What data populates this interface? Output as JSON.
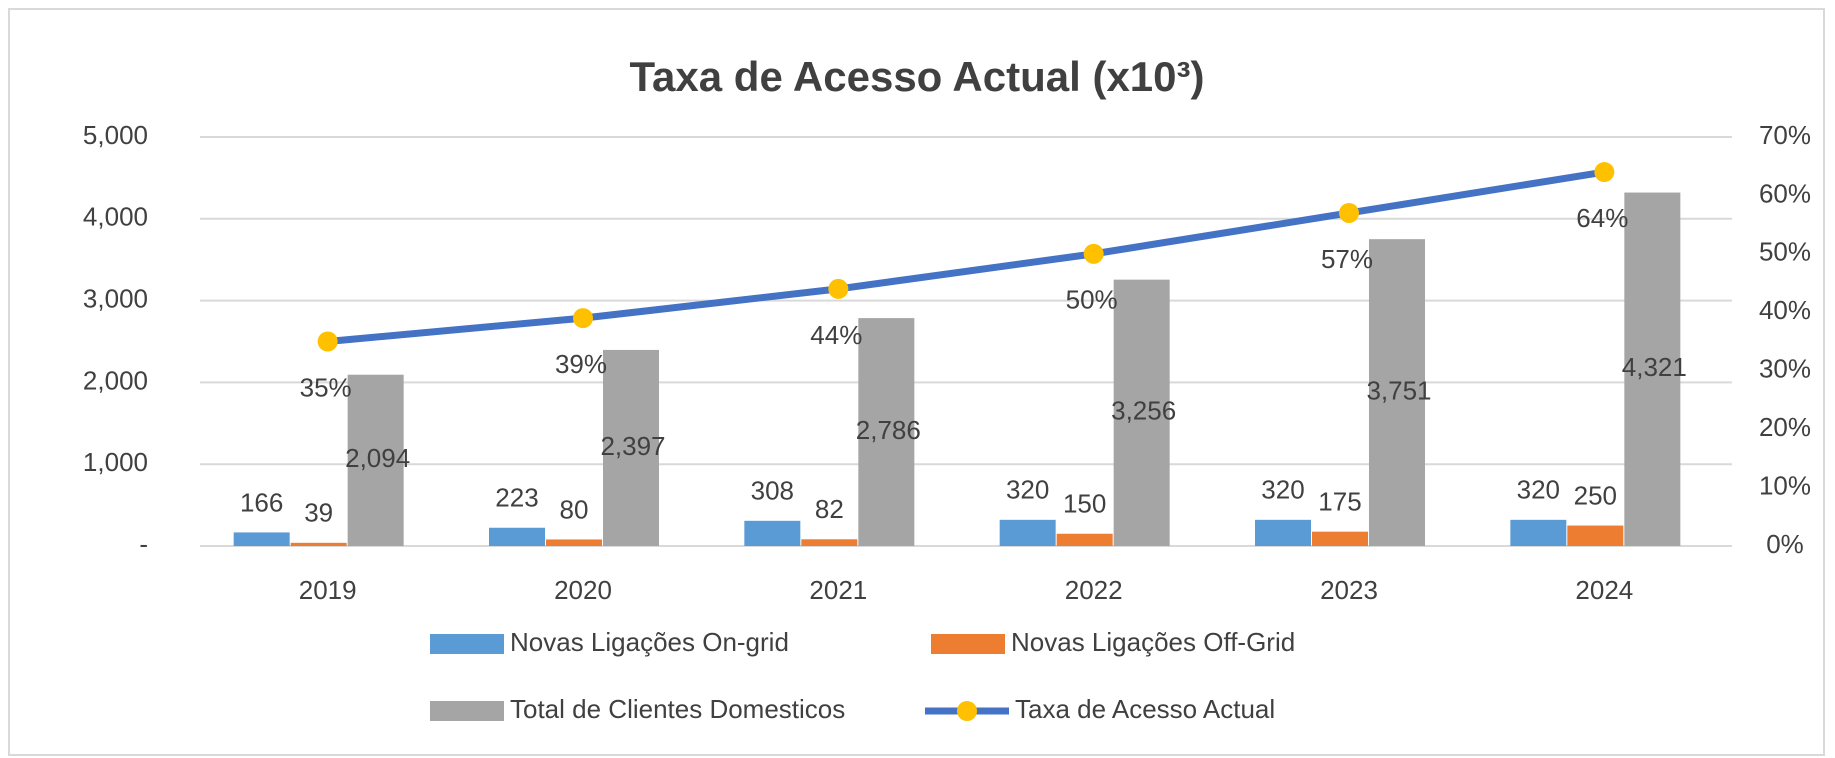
{
  "chart_data": {
    "type": "bar",
    "title": "Taxa de Acesso Actual (x10³)",
    "categories": [
      "2019",
      "2020",
      "2021",
      "2022",
      "2023",
      "2024"
    ],
    "series": [
      {
        "name": "Novas Ligações On-grid",
        "color": "#5b9bd5",
        "values": [
          166,
          223,
          308,
          320,
          320,
          320
        ]
      },
      {
        "name": "Novas Ligações Off-Grid",
        "color": "#ed7d31",
        "values": [
          39,
          80,
          82,
          150,
          175,
          250
        ]
      },
      {
        "name": "Total de Clientes Domesticos",
        "color": "#a5a5a5",
        "values": [
          2094,
          2397,
          2786,
          3256,
          3751,
          4321
        ],
        "value_labels": [
          "2,094",
          "2,397",
          "2,786",
          "3,256",
          "3,751",
          "4,321"
        ]
      },
      {
        "name": "Taxa de Acesso Actual",
        "type": "line",
        "axis": "y2",
        "color": "#4472c4",
        "marker_color": "#ffc000",
        "values": [
          35,
          39,
          44,
          50,
          57,
          64
        ],
        "value_labels": [
          "35%",
          "39%",
          "44%",
          "50%",
          "57%",
          "64%"
        ]
      }
    ],
    "ylim": [
      0,
      5000
    ],
    "yticks": [
      {
        "value": 0,
        "label": "-"
      },
      {
        "value": 1000,
        "label": "1,000"
      },
      {
        "value": 2000,
        "label": "2,000"
      },
      {
        "value": 3000,
        "label": "3,000"
      },
      {
        "value": 4000,
        "label": "4,000"
      },
      {
        "value": 5000,
        "label": "5,000"
      }
    ],
    "y2lim": [
      0,
      70
    ],
    "y2ticks": [
      {
        "value": 0,
        "label": "0%"
      },
      {
        "value": 10,
        "label": "10%"
      },
      {
        "value": 20,
        "label": "20%"
      },
      {
        "value": 30,
        "label": "30%"
      },
      {
        "value": 40,
        "label": "40%"
      },
      {
        "value": 50,
        "label": "50%"
      },
      {
        "value": 60,
        "label": "60%"
      },
      {
        "value": 70,
        "label": "70%"
      }
    ],
    "grid": true,
    "legend": "bottom"
  }
}
